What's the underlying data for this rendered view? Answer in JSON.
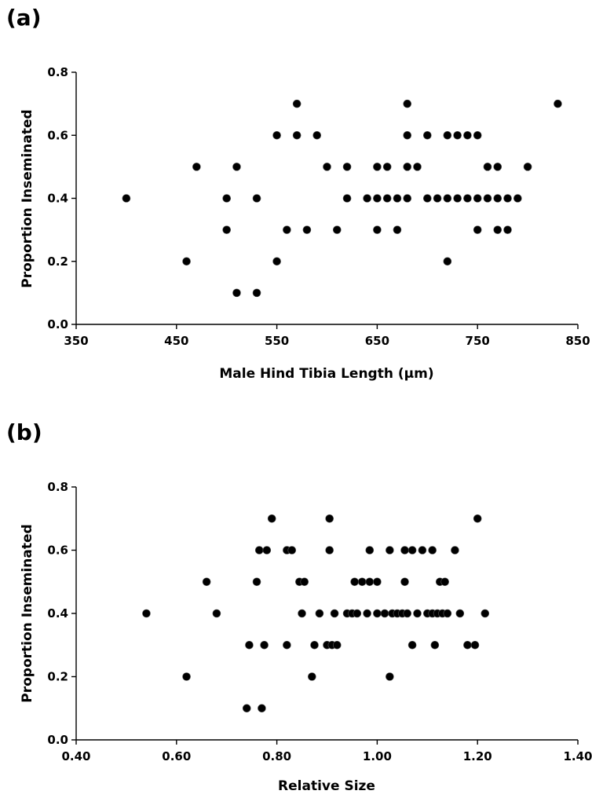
{
  "chart_data": [
    {
      "type": "scatter",
      "panel_label": "(a)",
      "xlabel": "Male Hind Tibia Length (µm)",
      "ylabel": "Proportion Inseminated",
      "xlim": [
        350,
        850
      ],
      "ylim": [
        0.0,
        0.8
      ],
      "xticks": [
        "350",
        "450",
        "550",
        "650",
        "750",
        "850"
      ],
      "yticks": [
        "0.0",
        "0.2",
        "0.4",
        "0.6",
        "0.8"
      ],
      "grid": false,
      "points": [
        [
          400,
          0.4
        ],
        [
          460,
          0.2
        ],
        [
          470,
          0.5
        ],
        [
          500,
          0.4
        ],
        [
          500,
          0.3
        ],
        [
          510,
          0.5
        ],
        [
          510,
          0.1
        ],
        [
          530,
          0.4
        ],
        [
          530,
          0.1
        ],
        [
          550,
          0.6
        ],
        [
          550,
          0.2
        ],
        [
          560,
          0.3
        ],
        [
          570,
          0.7
        ],
        [
          570,
          0.6
        ],
        [
          580,
          0.3
        ],
        [
          590,
          0.6
        ],
        [
          600,
          0.5
        ],
        [
          610,
          0.3
        ],
        [
          620,
          0.5
        ],
        [
          620,
          0.4
        ],
        [
          640,
          0.4
        ],
        [
          650,
          0.5
        ],
        [
          650,
          0.4
        ],
        [
          650,
          0.3
        ],
        [
          660,
          0.5
        ],
        [
          660,
          0.4
        ],
        [
          670,
          0.4
        ],
        [
          670,
          0.3
        ],
        [
          680,
          0.7
        ],
        [
          680,
          0.6
        ],
        [
          680,
          0.5
        ],
        [
          680,
          0.4
        ],
        [
          690,
          0.5
        ],
        [
          700,
          0.6
        ],
        [
          700,
          0.4
        ],
        [
          710,
          0.4
        ],
        [
          720,
          0.6
        ],
        [
          720,
          0.4
        ],
        [
          720,
          0.2
        ],
        [
          730,
          0.6
        ],
        [
          730,
          0.4
        ],
        [
          740,
          0.6
        ],
        [
          740,
          0.4
        ],
        [
          750,
          0.6
        ],
        [
          750,
          0.4
        ],
        [
          750,
          0.3
        ],
        [
          760,
          0.5
        ],
        [
          760,
          0.4
        ],
        [
          770,
          0.5
        ],
        [
          770,
          0.4
        ],
        [
          770,
          0.3
        ],
        [
          780,
          0.4
        ],
        [
          780,
          0.3
        ],
        [
          790,
          0.4
        ],
        [
          800,
          0.5
        ],
        [
          830,
          0.7
        ]
      ]
    },
    {
      "type": "scatter",
      "panel_label": "(b)",
      "xlabel": "Relative Size",
      "ylabel": "Proportion Inseminated",
      "xlim": [
        0.4,
        1.4
      ],
      "ylim": [
        0.0,
        0.8
      ],
      "xticks": [
        "0.40",
        "0.60",
        "0.80",
        "1.00",
        "1.20",
        "1.40"
      ],
      "yticks": [
        "0.0",
        "0.2",
        "0.4",
        "0.6",
        "0.8"
      ],
      "grid": false,
      "points": [
        [
          0.54,
          0.4
        ],
        [
          0.62,
          0.2
        ],
        [
          0.66,
          0.5
        ],
        [
          0.68,
          0.4
        ],
        [
          0.74,
          0.1
        ],
        [
          0.745,
          0.3
        ],
        [
          0.76,
          0.5
        ],
        [
          0.765,
          0.6
        ],
        [
          0.77,
          0.1
        ],
        [
          0.775,
          0.3
        ],
        [
          0.78,
          0.6
        ],
        [
          0.79,
          0.7
        ],
        [
          0.82,
          0.6
        ],
        [
          0.82,
          0.3
        ],
        [
          0.83,
          0.6
        ],
        [
          0.845,
          0.5
        ],
        [
          0.85,
          0.4
        ],
        [
          0.855,
          0.5
        ],
        [
          0.87,
          0.2
        ],
        [
          0.875,
          0.3
        ],
        [
          0.885,
          0.4
        ],
        [
          0.9,
          0.3
        ],
        [
          0.905,
          0.7
        ],
        [
          0.905,
          0.6
        ],
        [
          0.91,
          0.3
        ],
        [
          0.915,
          0.4
        ],
        [
          0.92,
          0.3
        ],
        [
          0.94,
          0.4
        ],
        [
          0.95,
          0.4
        ],
        [
          0.955,
          0.5
        ],
        [
          0.96,
          0.4
        ],
        [
          0.97,
          0.5
        ],
        [
          0.98,
          0.4
        ],
        [
          0.985,
          0.6
        ],
        [
          0.985,
          0.5
        ],
        [
          1.0,
          0.5
        ],
        [
          1.0,
          0.4
        ],
        [
          1.015,
          0.4
        ],
        [
          1.025,
          0.6
        ],
        [
          1.025,
          0.2
        ],
        [
          1.03,
          0.4
        ],
        [
          1.04,
          0.4
        ],
        [
          1.05,
          0.4
        ],
        [
          1.055,
          0.6
        ],
        [
          1.055,
          0.5
        ],
        [
          1.06,
          0.4
        ],
        [
          1.07,
          0.6
        ],
        [
          1.07,
          0.3
        ],
        [
          1.08,
          0.4
        ],
        [
          1.09,
          0.6
        ],
        [
          1.1,
          0.4
        ],
        [
          1.11,
          0.6
        ],
        [
          1.11,
          0.4
        ],
        [
          1.115,
          0.3
        ],
        [
          1.12,
          0.4
        ],
        [
          1.125,
          0.5
        ],
        [
          1.13,
          0.4
        ],
        [
          1.135,
          0.5
        ],
        [
          1.14,
          0.4
        ],
        [
          1.155,
          0.6
        ],
        [
          1.165,
          0.4
        ],
        [
          1.18,
          0.3
        ],
        [
          1.195,
          0.3
        ],
        [
          1.2,
          0.7
        ],
        [
          1.215,
          0.4
        ]
      ]
    }
  ]
}
